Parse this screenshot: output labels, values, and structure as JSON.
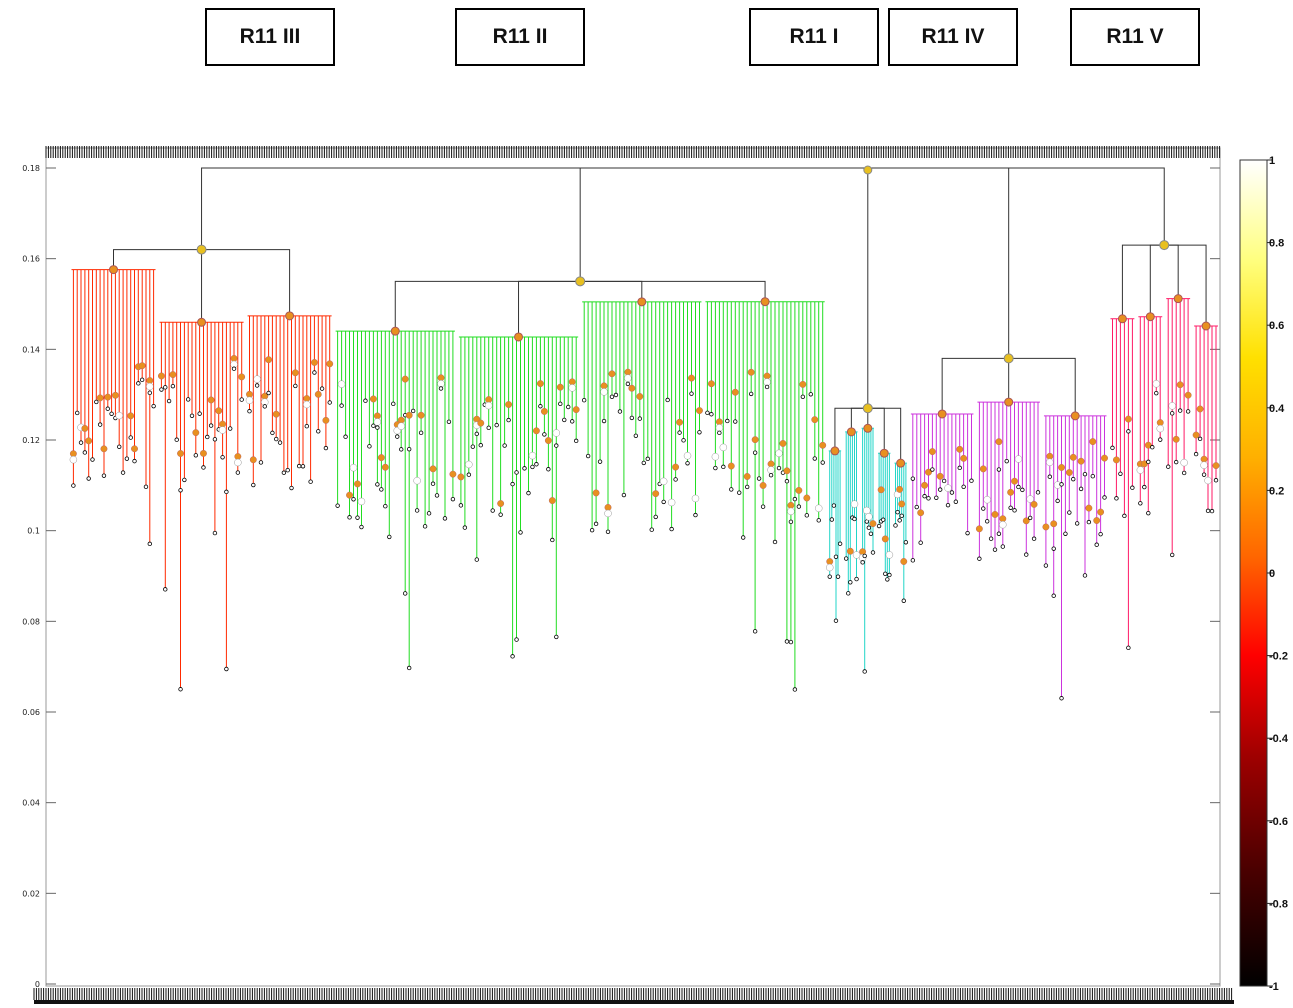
{
  "cluster_labels": [
    "R11 III",
    "R11 II",
    "R11 I",
    "R11 IV",
    "R11 V"
  ],
  "chart_data": {
    "type": "dendrogram",
    "title": "",
    "xlabel": "",
    "ylabel": "",
    "ylim": [
      0,
      0.18
    ],
    "y_ticks": [
      0,
      0.02,
      0.04,
      0.06,
      0.08,
      0.1,
      0.12,
      0.14,
      0.16,
      0.18
    ],
    "y_tick_labels": [
      "0",
      "0.02",
      "0.04",
      "0.06",
      "0.08",
      "0.1",
      "0.12",
      "0.14",
      "0.16",
      "0.18"
    ],
    "colorbar": {
      "range": [
        -1,
        1
      ],
      "ticks": [
        1,
        0.8,
        0.6,
        0.4,
        0.2,
        0,
        -0.2,
        -0.4,
        -0.6,
        -0.8,
        -1
      ],
      "tick_labels": [
        "1",
        "0.8",
        "0.6",
        "0.4",
        "0.2",
        "0",
        "-0.2",
        "-0.4",
        "-0.6",
        "-0.8",
        "-1"
      ],
      "colors": [
        "#000000",
        "#4a0000",
        "#a00000",
        "#ff0000",
        "#ff6600",
        "#ffb000",
        "#ffe000",
        "#ffff80",
        "#ffffff"
      ]
    },
    "clusters": [
      {
        "name": "R11 III",
        "color": "#ff2a00",
        "x_range": [
          0.02,
          0.245
        ],
        "node_height": 0.162,
        "leaf_band": [
          0.115,
          0.14
        ]
      },
      {
        "name": "R11 II",
        "color": "#22dd22",
        "x_range": [
          0.245,
          0.665
        ],
        "node_height": 0.155,
        "leaf_band": [
          0.105,
          0.135
        ]
      },
      {
        "name": "R11 I",
        "color": "#22d6c8",
        "x_range": [
          0.665,
          0.735
        ],
        "node_height": 0.127,
        "leaf_band": [
          0.09,
          0.11
        ]
      },
      {
        "name": "R11 IV",
        "color": "#cc33dd",
        "x_range": [
          0.735,
          0.905
        ],
        "node_height": 0.138,
        "leaf_band": [
          0.1,
          0.12
        ]
      },
      {
        "name": "R11 V",
        "color": "#ff1a66",
        "x_range": [
          0.905,
          1.0
        ],
        "node_height": 0.163,
        "leaf_band": [
          0.11,
          0.135
        ]
      }
    ],
    "root_height": 0.18,
    "node_colors": {
      "high": "#e8c020",
      "mid": "#e89020",
      "low": "#ffffff",
      "leaf": "#000000"
    }
  }
}
